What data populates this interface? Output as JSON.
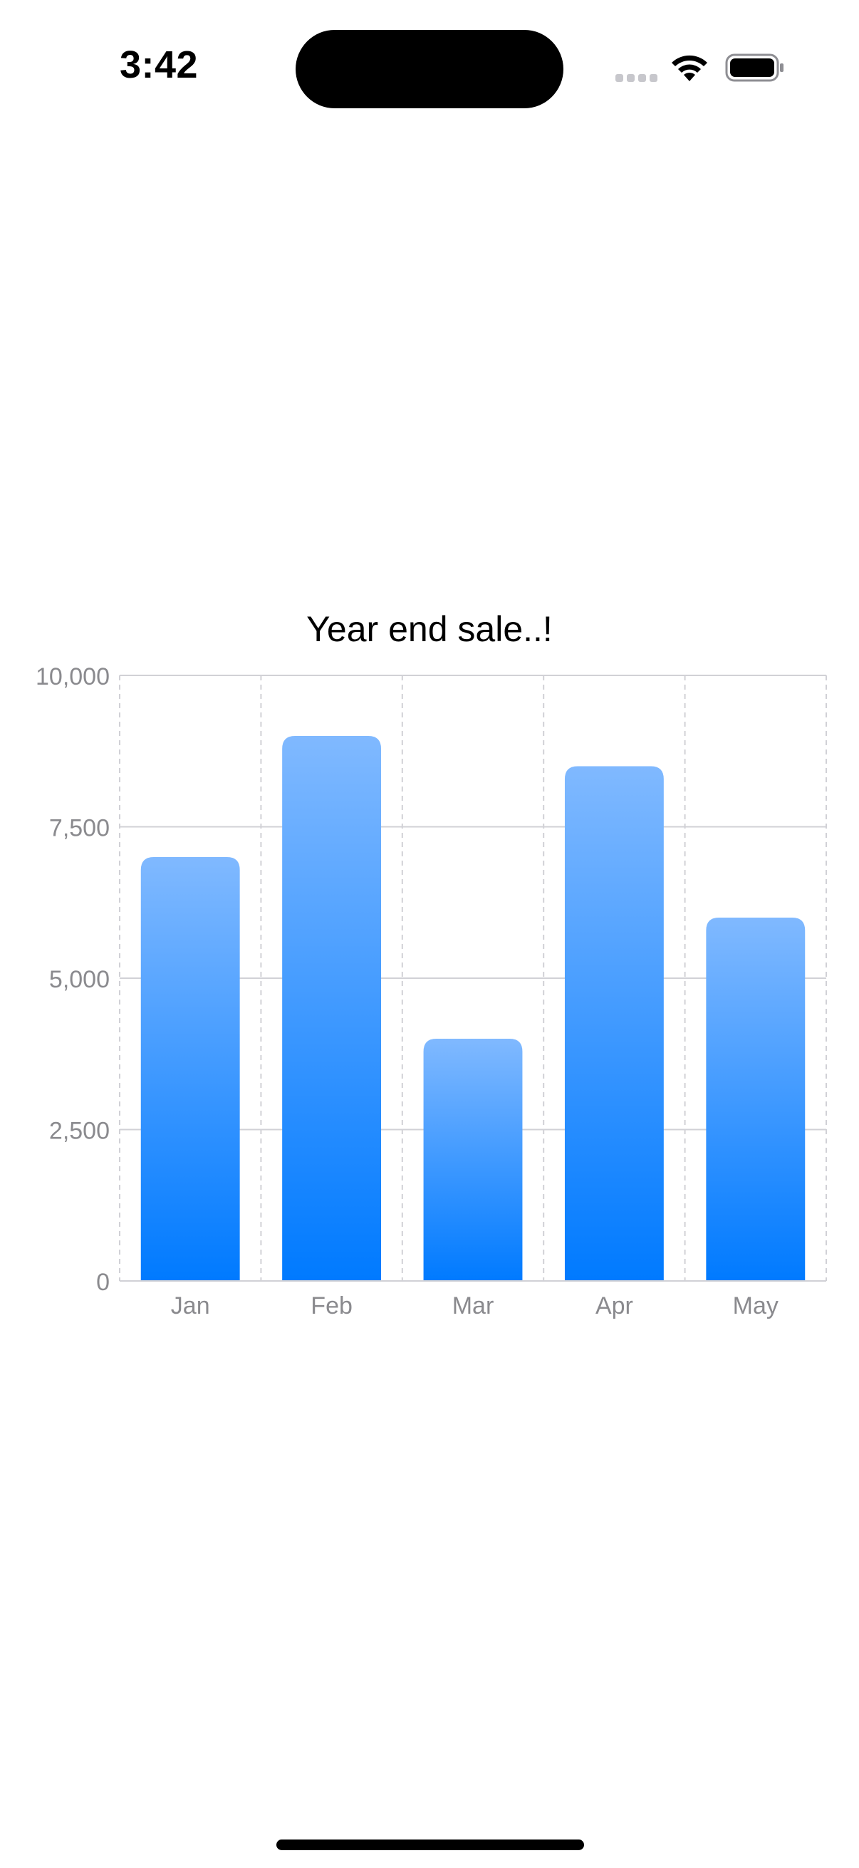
{
  "status_bar": {
    "time": "3:42",
    "wifi_icon": "wifi-icon",
    "battery_icon": "battery-icon",
    "signal_icon": "cellular-signal-icon"
  },
  "chart_data": {
    "type": "bar",
    "title": "Year end sale..!",
    "categories": [
      "Jan",
      "Feb",
      "Mar",
      "Apr",
      "May"
    ],
    "values": [
      7000,
      9000,
      4000,
      8500,
      6000
    ],
    "ylim": [
      0,
      10000
    ],
    "yticks": [
      0,
      2500,
      5000,
      7500,
      10000
    ],
    "ytick_labels": [
      "0",
      "2,500",
      "5,000",
      "7,500",
      "10,000"
    ],
    "xlabel": "",
    "ylabel": "",
    "grid": true,
    "colors": {
      "bar_top": "#80b9ff",
      "bar_bottom": "#007aff",
      "grid": "#d1d1d6",
      "tick_label": "#8a8a8e"
    }
  }
}
